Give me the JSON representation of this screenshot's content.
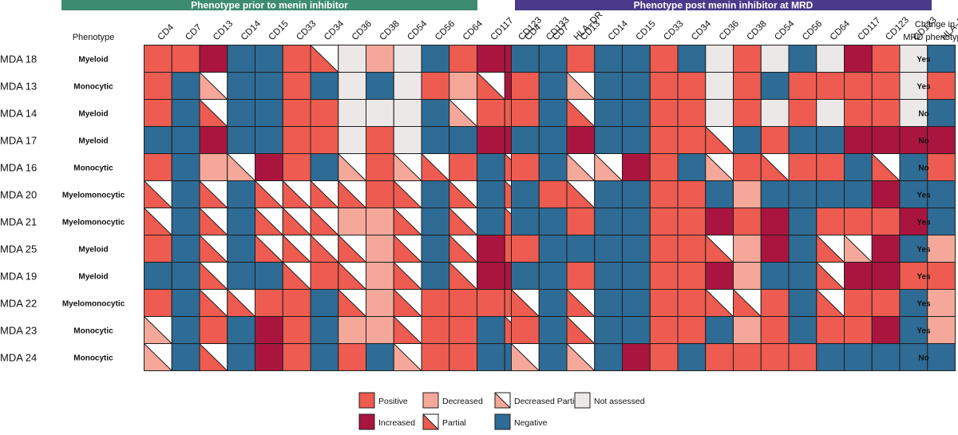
{
  "chart_data": {
    "type": "heatmap",
    "panels": [
      {
        "title": "Phenotype prior to menin inhibitor",
        "header_color": "#3d8c72",
        "rows": [
          "P P I N N P Pt A D A N P I I A Dp",
          "P N Dp N N P N A N A P D Pt I A I",
          "P N Pt N N P P A A A N Dp P P A N",
          "N N I N N P P A P A N N I I A I",
          "P N D Dp I P N Dp P Dp Pt P N Pt N P",
          "Pt N Pt N Pt Pt Pt Pt P Pt N Pt N Pt N P",
          "Pt N Pt N Pt Pt Pt D D Pt N Pt N Pt N P",
          "P N Pt N Pt Pt Pt Pt D Pt N Pt I P N D",
          "N N Pt N N Pt P Pt D Pt N Pt I I N P",
          "P N Pt Pt P P N Pt D Pt P P P P N N",
          "Dp N P N I P N D D Pt P P N Pt N Pt",
          "Dp N Pt N I P N P N Dp P P N N N N"
        ]
      },
      {
        "title": "Phenotype post menin inhibitor at MRD",
        "header_color": "#4a3a8a",
        "rows": [
          "N N P N N P N A P A N A I P A N",
          "P N Dp N N P P A P N P P P P A P",
          "P N Pt N N P P A P A P A P P A N",
          "N N I N N P P Pt N P N N I I I I",
          "P N Dp Dp I P N Dp P Pt P P N Pt N P",
          "N P Pt N N P P N D N N N N I N N",
          "N N P N N P P I P I N P P P I N",
          "P N N N N P P Pt D I N Pt Dp I N D",
          "N N P N N P P I D N N Pt I I P P",
          "Pt N Pt N N P P Pt Pt P N Pt P P N D",
          "P N Pt N N P P N D P N P P I N D",
          "Dp N Dp N I P N P P P P N N N N N"
        ]
      }
    ],
    "columns": [
      "CD4",
      "CD7",
      "CD13",
      "CD14",
      "CD15",
      "CD33",
      "CD34",
      "CD36",
      "CD38",
      "CD54",
      "CD56",
      "CD64",
      "CD117",
      "CD123",
      "CD133",
      "HLA–DR"
    ],
    "row_labels": [
      "MDA 18",
      "MDA 13",
      "MDA 14",
      "MDA 17",
      "MDA 16",
      "MDA 20",
      "MDA 21",
      "MDA 25",
      "MDA 19",
      "MDA 22",
      "MDA 23",
      "MDA 24"
    ],
    "phenotype_header": "Phenotype",
    "phenotypes": [
      "Myeloid",
      "Monocytic",
      "Myeloid",
      "Myeloid",
      "Monocytic",
      "Myelomonocytic",
      "Myelomonocytic",
      "Myeloid",
      "Myeloid",
      "Myelomonocytic",
      "Monocytic",
      "Monocytic"
    ],
    "change_header": [
      "Change in",
      "MRD phenotype"
    ],
    "changes": [
      "Yes",
      "Yes",
      "No",
      "No",
      "No",
      "Yes",
      "Yes",
      "Yes",
      "Yes",
      "Yes",
      "Yes",
      "No"
    ],
    "legend": [
      {
        "code": "P",
        "label": "Positive"
      },
      {
        "code": "D",
        "label": "Decreased"
      },
      {
        "code": "Dp",
        "label": "Decreased Partial"
      },
      {
        "code": "A",
        "label": "Not assessed"
      },
      {
        "code": "I",
        "label": "Increased"
      },
      {
        "code": "Pt",
        "label": "Partial"
      },
      {
        "code": "N",
        "label": "Negative"
      }
    ],
    "colors": {
      "positive": "#ee5b50",
      "decreased": "#f5a899",
      "increased": "#aa1540",
      "negative": "#2e6b95",
      "not_assessed": "#ece8e8",
      "empty": "#ffffff",
      "border": "#1e1e1e"
    }
  }
}
